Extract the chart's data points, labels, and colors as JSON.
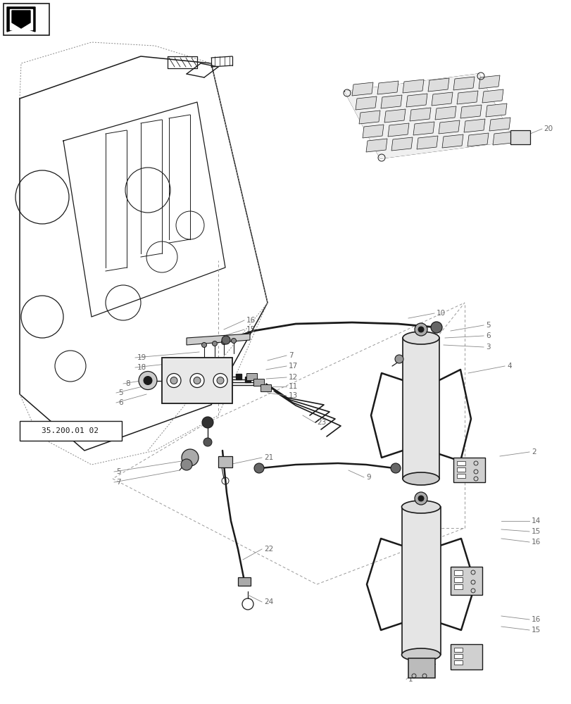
{
  "background_color": "#ffffff",
  "drawing_color": "#1a1a1a",
  "light_gray": "#cccccc",
  "medium_gray": "#888888",
  "label_color": "#666666",
  "fig_width": 8.12,
  "fig_height": 10.0,
  "dpi": 100,
  "ref_box_text": "35.200.01 02"
}
